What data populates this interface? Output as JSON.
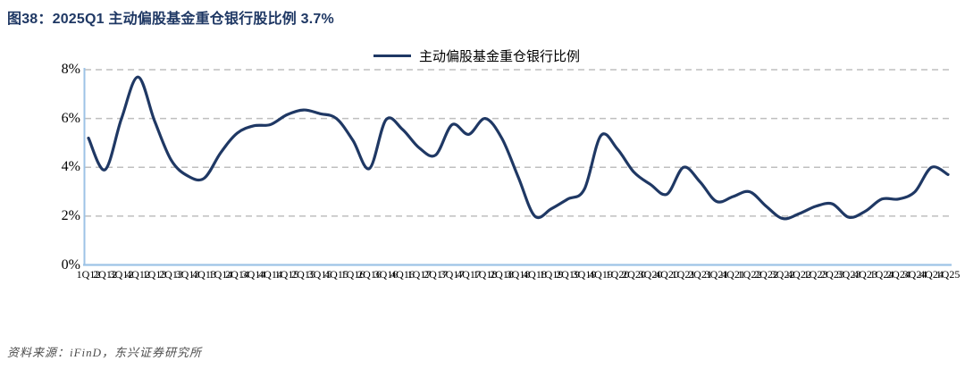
{
  "title": "图38：2025Q1 主动偏股基金重仓银行股比例 3.7%",
  "legend": {
    "label": "主动偏股基金重仓银行比例"
  },
  "source": "资料来源：iFinD，东兴证券研究所",
  "colors": {
    "line": "#1F3864",
    "title": "#1F3864",
    "axis": "#9DC3E6",
    "grid": "#BFBFBF",
    "tick_text": "#000000"
  },
  "chart_data": {
    "type": "line",
    "title": "2025Q1 主动偏股基金重仓银行股比例 3.7%",
    "legend_entries": [
      "主动偏股基金重仓银行比例"
    ],
    "legend_position": "top-center",
    "grid": "horizontal-dashed",
    "xlabel": "",
    "ylabel": "",
    "ylim": [
      0,
      8
    ],
    "ytick_values": [
      0,
      2,
      4,
      6,
      8
    ],
    "ytick_labels": [
      "0%",
      "2%",
      "4%",
      "6%",
      "8%"
    ],
    "categories": [
      "1Q12",
      "2Q12",
      "3Q12",
      "4Q12",
      "1Q13",
      "2Q13",
      "3Q13",
      "4Q13",
      "1Q14",
      "2Q14",
      "3Q14",
      "4Q14",
      "1Q15",
      "2Q15",
      "3Q15",
      "4Q15",
      "1Q16",
      "2Q16",
      "3Q16",
      "4Q16",
      "1Q17",
      "2Q17",
      "3Q17",
      "4Q17",
      "1Q18",
      "2Q18",
      "3Q18",
      "4Q18",
      "1Q19",
      "2Q19",
      "3Q19",
      "4Q19",
      "1Q20",
      "2Q20",
      "3Q20",
      "4Q20",
      "1Q21",
      "2Q21",
      "3Q21",
      "4Q21",
      "1Q22",
      "2Q22",
      "3Q22",
      "4Q22",
      "1Q23",
      "2Q23",
      "3Q23",
      "4Q23",
      "1Q24",
      "2Q24",
      "3Q24",
      "4Q24",
      "1Q25"
    ],
    "series": [
      {
        "name": "主动偏股基金重仓银行比例",
        "unit": "%",
        "values": [
          5.2,
          3.9,
          6.0,
          7.7,
          5.9,
          4.3,
          3.65,
          3.55,
          4.6,
          5.4,
          5.7,
          5.75,
          6.15,
          6.35,
          6.2,
          6.0,
          5.1,
          3.95,
          5.95,
          5.55,
          4.8,
          4.5,
          5.75,
          5.35,
          6.0,
          5.2,
          3.6,
          2.0,
          2.3,
          2.7,
          3.1,
          5.3,
          4.75,
          3.8,
          3.3,
          2.9,
          4.0,
          3.4,
          2.6,
          2.8,
          3.0,
          2.4,
          1.9,
          2.1,
          2.4,
          2.5,
          1.95,
          2.2,
          2.7,
          2.7,
          3.0,
          4.0,
          3.7
        ]
      }
    ]
  }
}
